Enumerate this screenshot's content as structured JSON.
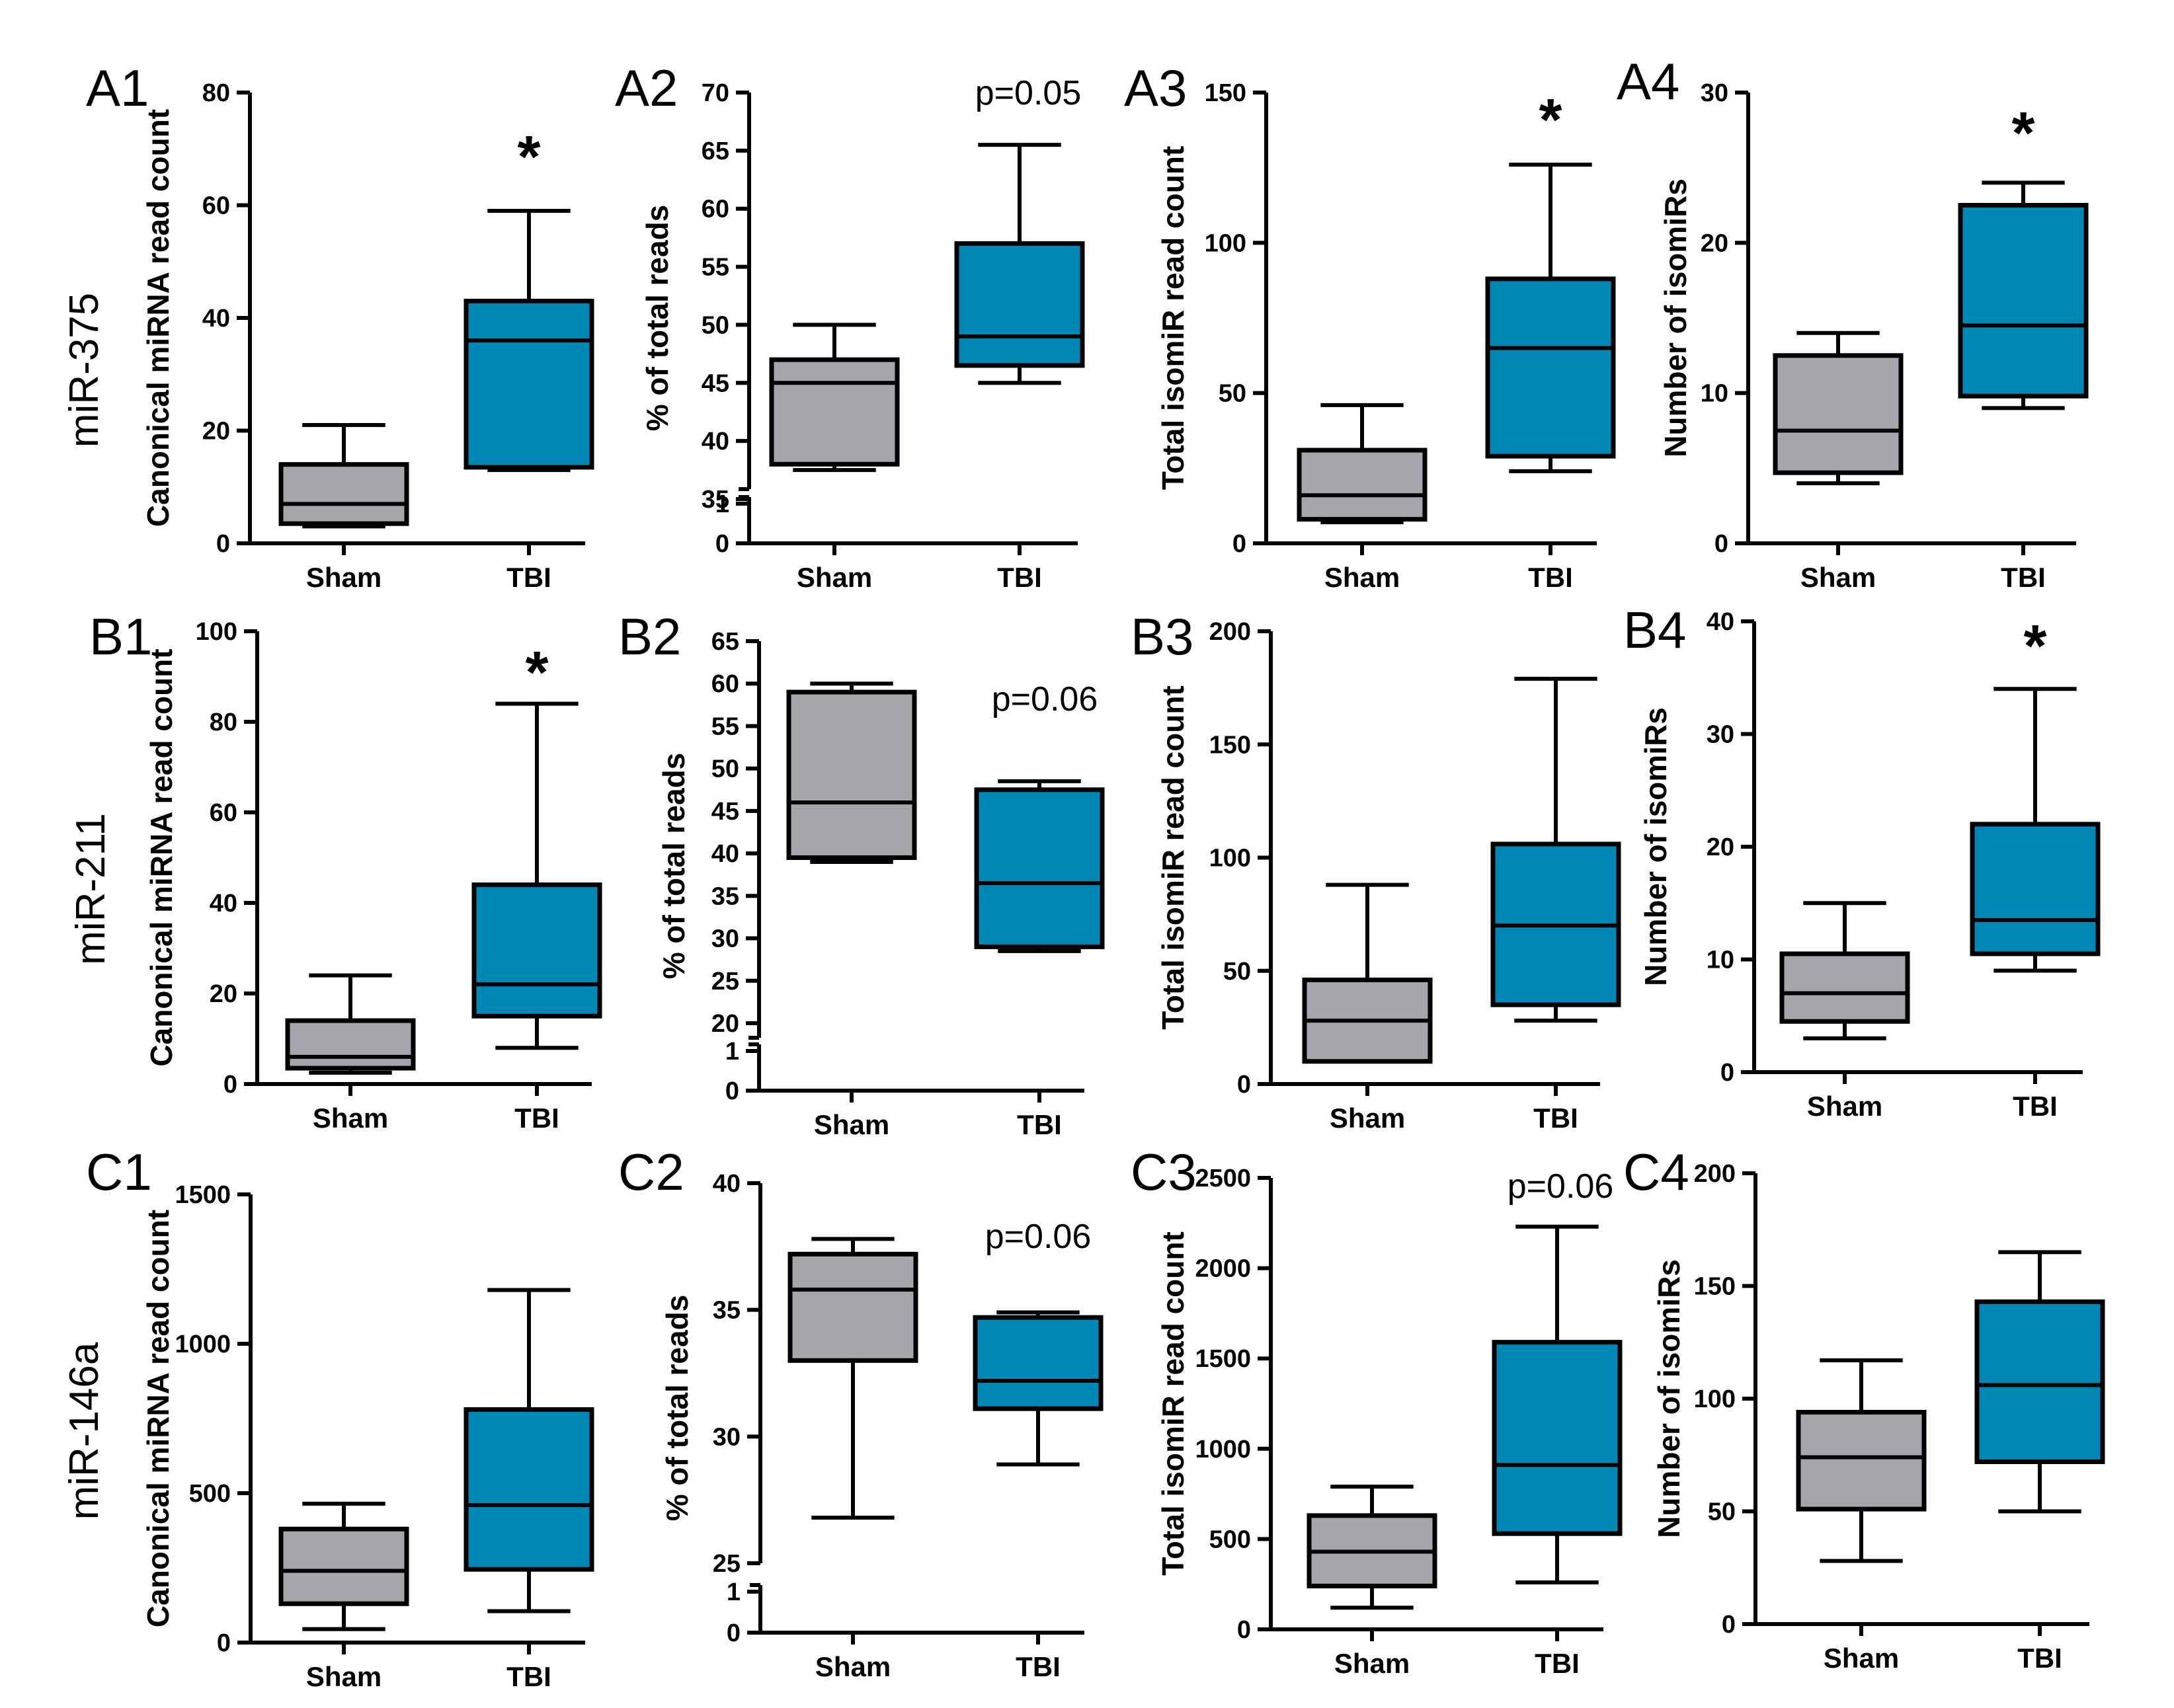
{
  "colors": {
    "sham": "#a6a5ab",
    "tbi": "#0087b4",
    "stroke": "#000000"
  },
  "row_labels": [
    "miR-375",
    "miR-211",
    "miR-146a"
  ],
  "chart_data": [
    {
      "id": "A1",
      "type": "boxplot",
      "panel_label": "A1",
      "ylabel": "Canonical miRNA read count",
      "categories": [
        "Sham",
        "TBI"
      ],
      "ylim": [
        0,
        80
      ],
      "yticks": [
        "0",
        "20",
        "40",
        "60",
        "80"
      ],
      "boxes": [
        {
          "min": 3,
          "q1": 3.5,
          "median": 7,
          "q3": 14,
          "max": 21
        },
        {
          "min": 13,
          "q1": 13.5,
          "median": 36,
          "q3": 43,
          "max": 59
        }
      ],
      "annotation": "*",
      "annotation_kind": "star",
      "axis_break": false
    },
    {
      "id": "A2",
      "type": "boxplot",
      "panel_label": "A2",
      "ylabel": "% of total reads",
      "categories": [
        "Sham",
        "TBI"
      ],
      "ylim": [
        35,
        70
      ],
      "yticks": [
        "35",
        "40",
        "45",
        "50",
        "55",
        "60",
        "65",
        "70"
      ],
      "break_ticks": [
        "0",
        "1"
      ],
      "boxes": [
        {
          "min": 37.5,
          "q1": 38,
          "median": 45,
          "q3": 47,
          "max": 50
        },
        {
          "min": 45,
          "q1": 46.5,
          "median": 49,
          "q3": 57,
          "max": 65.5
        }
      ],
      "annotation": "p=0.05",
      "annotation_kind": "p",
      "axis_break": true
    },
    {
      "id": "A3",
      "type": "boxplot",
      "panel_label": "A3",
      "ylabel": "Total isomiR read count",
      "categories": [
        "Sham",
        "TBI"
      ],
      "ylim": [
        0,
        150
      ],
      "yticks": [
        "0",
        "50",
        "100",
        "150"
      ],
      "boxes": [
        {
          "min": 7,
          "q1": 8,
          "median": 16,
          "q3": 31,
          "max": 46
        },
        {
          "min": 24,
          "q1": 29,
          "median": 65,
          "q3": 88,
          "max": 126
        }
      ],
      "annotation": "*",
      "annotation_kind": "star",
      "axis_break": false
    },
    {
      "id": "A4",
      "type": "boxplot",
      "panel_label": "A4",
      "ylabel": "Number of isomiRs",
      "categories": [
        "Sham",
        "TBI"
      ],
      "ylim": [
        0,
        30
      ],
      "yticks": [
        "0",
        "10",
        "20",
        "30"
      ],
      "boxes": [
        {
          "min": 4,
          "q1": 4.7,
          "median": 7.5,
          "q3": 12.5,
          "max": 14
        },
        {
          "min": 9,
          "q1": 9.8,
          "median": 14.5,
          "q3": 22.5,
          "max": 24
        }
      ],
      "annotation": "*",
      "annotation_kind": "star",
      "axis_break": false
    },
    {
      "id": "B1",
      "type": "boxplot",
      "panel_label": "B1",
      "ylabel": "Canonical miRNA read count",
      "categories": [
        "Sham",
        "TBI"
      ],
      "ylim": [
        0,
        100
      ],
      "yticks": [
        "0",
        "20",
        "40",
        "60",
        "80",
        "100"
      ],
      "boxes": [
        {
          "min": 2.5,
          "q1": 3.5,
          "median": 6,
          "q3": 14,
          "max": 24
        },
        {
          "min": 8,
          "q1": 15,
          "median": 22,
          "q3": 44,
          "max": 84
        }
      ],
      "annotation": "*",
      "annotation_kind": "star",
      "axis_break": false
    },
    {
      "id": "B2",
      "type": "boxplot",
      "panel_label": "B2",
      "ylabel": "% of total reads",
      "categories": [
        "Sham",
        "TBI"
      ],
      "ylim": [
        20,
        65
      ],
      "yticks": [
        "20",
        "25",
        "30",
        "35",
        "40",
        "45",
        "50",
        "55",
        "60",
        "65"
      ],
      "break_ticks": [
        "0",
        "1"
      ],
      "boxes": [
        {
          "min": 39,
          "q1": 39.5,
          "median": 46,
          "q3": 59,
          "max": 60
        },
        {
          "min": 28.5,
          "q1": 29,
          "median": 36.5,
          "q3": 47.5,
          "max": 48.5
        }
      ],
      "annotation": "p=0.06",
      "annotation_kind": "p",
      "axis_break": true
    },
    {
      "id": "B3",
      "type": "boxplot",
      "panel_label": "B3",
      "ylabel": "Total isomiR read count",
      "categories": [
        "Sham",
        "TBI"
      ],
      "ylim": [
        0,
        200
      ],
      "yticks": [
        "0",
        "50",
        "100",
        "150",
        "200"
      ],
      "boxes": [
        {
          "min": 10,
          "q1": 10,
          "median": 28,
          "q3": 46,
          "max": 88
        },
        {
          "min": 28,
          "q1": 35,
          "median": 70,
          "q3": 106,
          "max": 179
        }
      ],
      "annotation": "",
      "annotation_kind": "none",
      "axis_break": false
    },
    {
      "id": "B4",
      "type": "boxplot",
      "panel_label": "B4",
      "ylabel": "Number of isomiRs",
      "categories": [
        "Sham",
        "TBI"
      ],
      "ylim": [
        0,
        40
      ],
      "yticks": [
        "0",
        "10",
        "20",
        "30",
        "40"
      ],
      "boxes": [
        {
          "min": 3,
          "q1": 4.5,
          "median": 7,
          "q3": 10.5,
          "max": 15
        },
        {
          "min": 9,
          "q1": 10.5,
          "median": 13.5,
          "q3": 22,
          "max": 34
        }
      ],
      "annotation": "*",
      "annotation_kind": "star",
      "axis_break": false
    },
    {
      "id": "C1",
      "type": "boxplot",
      "panel_label": "C1",
      "ylabel": "Canonical miRNA read count",
      "categories": [
        "Sham",
        "TBI"
      ],
      "ylim": [
        0,
        1500
      ],
      "yticks": [
        "0",
        "500",
        "1000",
        "1500"
      ],
      "boxes": [
        {
          "min": 45,
          "q1": 130,
          "median": 240,
          "q3": 380,
          "max": 465
        },
        {
          "min": 105,
          "q1": 245,
          "median": 460,
          "q3": 780,
          "max": 1180
        }
      ],
      "annotation": "",
      "annotation_kind": "none",
      "axis_break": false
    },
    {
      "id": "C2",
      "type": "boxplot",
      "panel_label": "C2",
      "ylabel": "% of total reads",
      "categories": [
        "Sham",
        "TBI"
      ],
      "ylim": [
        25,
        40
      ],
      "yticks": [
        "25",
        "30",
        "35",
        "40"
      ],
      "break_ticks": [
        "0",
        "1"
      ],
      "boxes": [
        {
          "min": 26.8,
          "q1": 33,
          "median": 35.8,
          "q3": 37.2,
          "max": 37.8
        },
        {
          "min": 28.9,
          "q1": 31.1,
          "median": 32.2,
          "q3": 34.7,
          "max": 34.9
        }
      ],
      "annotation": "p=0.06",
      "annotation_kind": "p",
      "axis_break": true
    },
    {
      "id": "C3",
      "type": "boxplot",
      "panel_label": "C3",
      "ylabel": "Total isomiR read count",
      "categories": [
        "Sham",
        "TBI"
      ],
      "ylim": [
        0,
        2500
      ],
      "yticks": [
        "0",
        "500",
        "1000",
        "1500",
        "2000",
        "2500"
      ],
      "boxes": [
        {
          "min": 120,
          "q1": 240,
          "median": 430,
          "q3": 630,
          "max": 790
        },
        {
          "min": 260,
          "q1": 530,
          "median": 910,
          "q3": 1590,
          "max": 2230
        }
      ],
      "annotation": "p=0.06",
      "annotation_kind": "p",
      "axis_break": false
    },
    {
      "id": "C4",
      "type": "boxplot",
      "panel_label": "C4",
      "ylabel": "Number of isomiRs",
      "categories": [
        "Sham",
        "TBI"
      ],
      "ylim": [
        0,
        200
      ],
      "yticks": [
        "0",
        "50",
        "100",
        "150",
        "200"
      ],
      "boxes": [
        {
          "min": 28,
          "q1": 51,
          "median": 74,
          "q3": 94,
          "max": 117
        },
        {
          "min": 50,
          "q1": 72,
          "median": 106,
          "q3": 143,
          "max": 165
        }
      ],
      "annotation": "",
      "annotation_kind": "none",
      "axis_break": false
    }
  ]
}
